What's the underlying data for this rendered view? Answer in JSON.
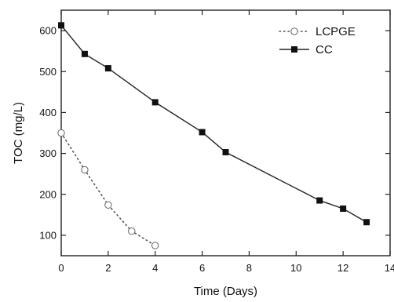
{
  "chart_data": {
    "type": "line",
    "title": "",
    "xlabel": "Time (Days)",
    "ylabel": "TOC (mg/L)",
    "xlim": [
      0,
      14
    ],
    "ylim": [
      50,
      650
    ],
    "x_ticks": [
      "0",
      "2",
      "4",
      "6",
      "8",
      "10",
      "12",
      "14"
    ],
    "y_ticks": [
      "100",
      "200",
      "300",
      "400",
      "500",
      "600"
    ],
    "grid": false,
    "legend_position": "top-right",
    "series": [
      {
        "name": "LCPGE",
        "style": "dotted",
        "marker": "open-circle",
        "color": "#555555",
        "x": [
          0,
          1,
          2,
          3,
          4
        ],
        "y": [
          350,
          260,
          174,
          110,
          75
        ]
      },
      {
        "name": "CC",
        "style": "solid",
        "marker": "filled-square",
        "color": "#222222",
        "x": [
          0,
          1,
          2,
          4,
          6,
          7,
          11,
          12,
          13
        ],
        "y": [
          613,
          543,
          508,
          425,
          352,
          303,
          185,
          165,
          132
        ]
      }
    ]
  }
}
